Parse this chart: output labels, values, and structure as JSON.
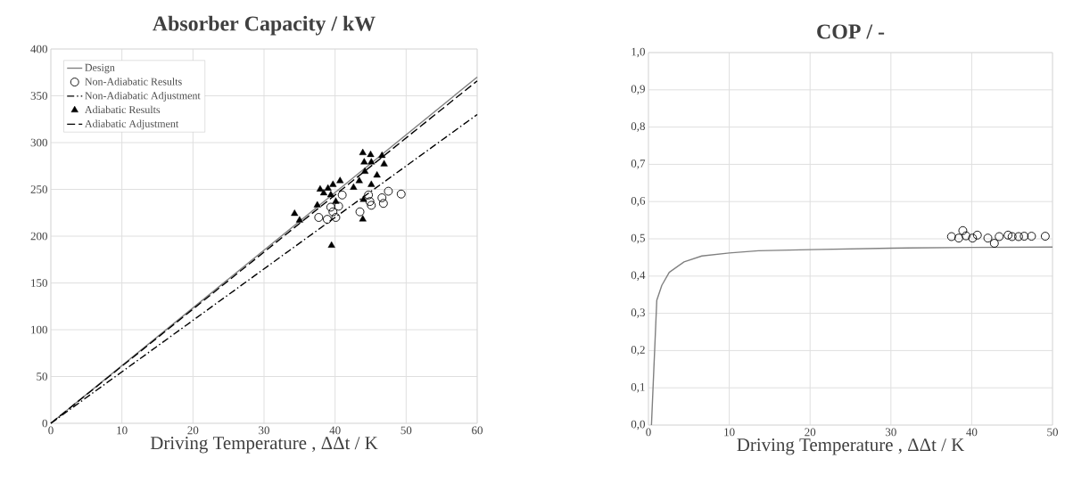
{
  "chart_data": [
    {
      "type": "line",
      "title": "Absorber Capacity / kW",
      "xlabel": "Driving Temperature , ΔΔt / K",
      "xlim": [
        0,
        60
      ],
      "ylim": [
        0,
        400
      ],
      "xticks": [
        0,
        10,
        20,
        30,
        40,
        50,
        60
      ],
      "yticks": [
        0,
        50,
        100,
        150,
        200,
        250,
        300,
        350,
        400
      ],
      "grid": true,
      "legend": "top left",
      "series": [
        {
          "name": "Design",
          "type": "line",
          "color": "#808080",
          "line_style": "solid",
          "marker": "none",
          "x": [
            0,
            60
          ],
          "values": [
            0,
            370
          ]
        },
        {
          "name": "Non-Adiabatic Results",
          "type": "scatter",
          "color": "#000000",
          "marker": "circle",
          "x": [
            41.0,
            44.7,
            47.5,
            49.3,
            46.6,
            44.9,
            46.8,
            45.1,
            40.5,
            39.4,
            43.5,
            39.7,
            37.7,
            38.9,
            40.1
          ],
          "values": [
            244,
            244,
            248,
            245,
            241,
            237,
            235,
            233,
            232,
            231,
            226,
            226,
            220,
            218,
            220
          ]
        },
        {
          "name": "Non-Adiabatic Adjustment",
          "type": "line",
          "color": "#000000",
          "line_style": "dashdot",
          "marker": "none",
          "x": [
            0,
            60
          ],
          "values": [
            0,
            330
          ]
        },
        {
          "name": "Adiabatic Results",
          "type": "scatter",
          "color": "#000000",
          "marker": "triangle",
          "x": [
            43.9,
            45.0,
            46.6,
            44.1,
            45.1,
            46.9,
            44.2,
            45.9,
            43.4,
            45.1,
            42.6,
            40.7,
            39.7,
            37.9,
            39.0,
            39.4,
            38.4,
            40.1,
            37.5,
            34.3,
            35.0,
            43.9,
            44.0,
            39.5
          ],
          "values": [
            289,
            287,
            286,
            279,
            279,
            277,
            269,
            265,
            259,
            255,
            252,
            259,
            255,
            250,
            251,
            244,
            246,
            237,
            233,
            224,
            217,
            218,
            239,
            190
          ]
        },
        {
          "name": "Adiabatic Adjustment",
          "type": "line",
          "color": "#000000",
          "line_style": "dashed",
          "marker": "none",
          "x": [
            0,
            60
          ],
          "values": [
            0,
            366
          ]
        }
      ]
    },
    {
      "type": "line",
      "title": "COP / -",
      "xlabel": "Driving Temperature , ΔΔt / K",
      "xlim": [
        0,
        50
      ],
      "ylim": [
        0,
        1
      ],
      "xticks": [
        0,
        10,
        20,
        30,
        40,
        50
      ],
      "yticks": [
        {
          "value": 0,
          "label": "0,0"
        },
        {
          "value": 0.1,
          "label": "0,1"
        },
        {
          "value": 0.2,
          "label": "0,2"
        },
        {
          "value": 0.3,
          "label": "0,3"
        },
        {
          "value": 0.4,
          "label": "0,4"
        },
        {
          "value": 0.5,
          "label": "0,5"
        },
        {
          "value": 0.6,
          "label": "0,6"
        },
        {
          "value": 0.7,
          "label": "0,7"
        },
        {
          "value": 0.8,
          "label": "0,8"
        },
        {
          "value": 0.9,
          "label": "0,9"
        },
        {
          "value": 1,
          "label": "1,0"
        }
      ],
      "grid": true,
      "series": [
        {
          "type": "line",
          "color": "#808080",
          "line_style": "solid",
          "marker": "none",
          "x": [
            0.37,
            1.03,
            1.65,
            2.57,
            4.4,
            6.6,
            10,
            13.6,
            20,
            30,
            40,
            50
          ],
          "values": [
            0,
            0.335,
            0.375,
            0.41,
            0.438,
            0.454,
            0.462,
            0.468,
            0.471,
            0.475,
            0.477,
            0.478
          ]
        },
        {
          "type": "scatter",
          "color": "#000000",
          "marker": "circle",
          "x": [
            37.5,
            38.4,
            38.9,
            39.3,
            40.1,
            40.7,
            42.0,
            42.8,
            43.4,
            44.5,
            45.0,
            45.8,
            46.5,
            47.4,
            49.1
          ],
          "values": [
            0.506,
            0.502,
            0.522,
            0.508,
            0.502,
            0.51,
            0.502,
            0.488,
            0.506,
            0.51,
            0.506,
            0.506,
            0.507,
            0.507,
            0.507
          ]
        }
      ]
    }
  ]
}
